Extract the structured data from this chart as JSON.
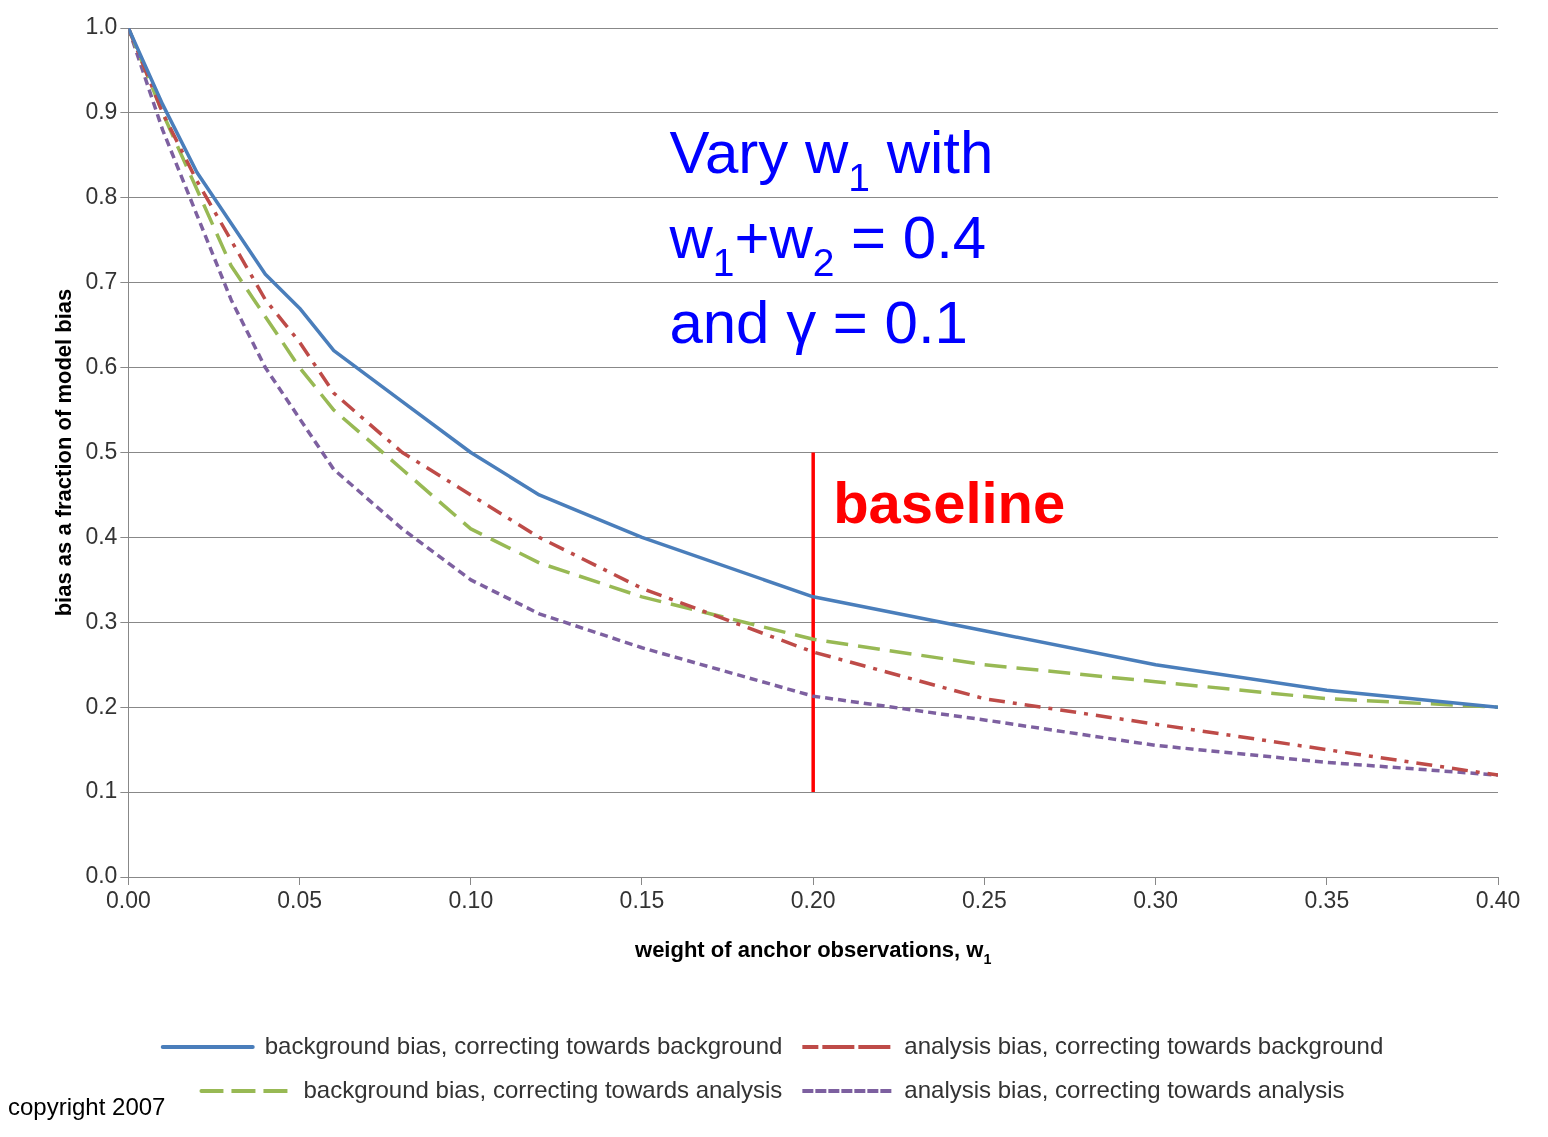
{
  "chart_data": {
    "type": "line",
    "xlabel": "weight of anchor observations, w$_{1}$",
    "ylabel": "bias as a fraction of model bias",
    "x": [
      0,
      0.01,
      0.02,
      0.03,
      0.04,
      0.05,
      0.06,
      0.08,
      0.1,
      0.12,
      0.15,
      0.2,
      0.25,
      0.3,
      0.35,
      0.4
    ],
    "series": [
      {
        "name": "background bias, correcting towards background",
        "color": "#4a7ebb",
        "line_style": "solid",
        "values": [
          1,
          0.91,
          0.83,
          0.77,
          0.71,
          0.67,
          0.62,
          0.56,
          0.5,
          0.45,
          0.4,
          0.33,
          0.29,
          0.25,
          0.22,
          0.2
        ]
      },
      {
        "name": "analysis bias, correcting towards background",
        "color": "#be4b48",
        "line_style": "dashdot",
        "values": [
          1,
          0.9,
          0.82,
          0.75,
          0.68,
          0.63,
          0.57,
          0.5,
          0.45,
          0.4,
          0.34,
          0.265,
          0.21,
          0.18,
          0.15,
          0.12
        ]
      },
      {
        "name": "background bias, correcting towards analysis",
        "color": "#98b954",
        "line_style": "dashed",
        "values": [
          1,
          0.9,
          0.81,
          0.72,
          0.66,
          0.6,
          0.55,
          0.48,
          0.41,
          0.37,
          0.33,
          0.28,
          0.25,
          0.23,
          0.21,
          0.2
        ]
      },
      {
        "name": "analysis bias, correcting towards analysis",
        "color": "#7d60a0",
        "line_style": "dotted",
        "values": [
          1,
          0.88,
          0.78,
          0.68,
          0.6,
          0.54,
          0.48,
          0.41,
          0.35,
          0.31,
          0.27,
          0.213,
          0.185,
          0.155,
          0.135,
          0.12
        ]
      },
      {
        "name": "baseline",
        "color": "#ff0000",
        "line_style": "solid",
        "x": [
          0.2,
          0.2
        ],
        "values": [
          0.1,
          0.5
        ]
      }
    ],
    "xlim": [
      0,
      0.4
    ],
    "xticks": [
      {
        "value": 0,
        "label": "0.00"
      },
      0.05,
      {
        "value": 0.1,
        "label": "0.10"
      },
      0.15,
      {
        "value": 0.2,
        "label": "0.20"
      },
      0.25,
      {
        "value": 0.3,
        "label": "0.30"
      },
      0.35,
      {
        "value": 0.4,
        "label": "0.40"
      }
    ],
    "ylim": [
      0,
      1
    ],
    "yticks": [
      {
        "value": 0,
        "label": "0.0"
      },
      0.1,
      0.2,
      0.3,
      0.4,
      0.5,
      0.6,
      0.7,
      0.8,
      0.9,
      {
        "value": 1,
        "label": "1.0"
      }
    ],
    "grid": "y",
    "legend": "bottom",
    "marker": "none",
    "annotations": [
      "Vary w$_{1}$ with",
      "w$_{1}$+w$_{2}$ = 0.4",
      "and γ = 0.1",
      "copyright 2007"
    ]
  }
}
